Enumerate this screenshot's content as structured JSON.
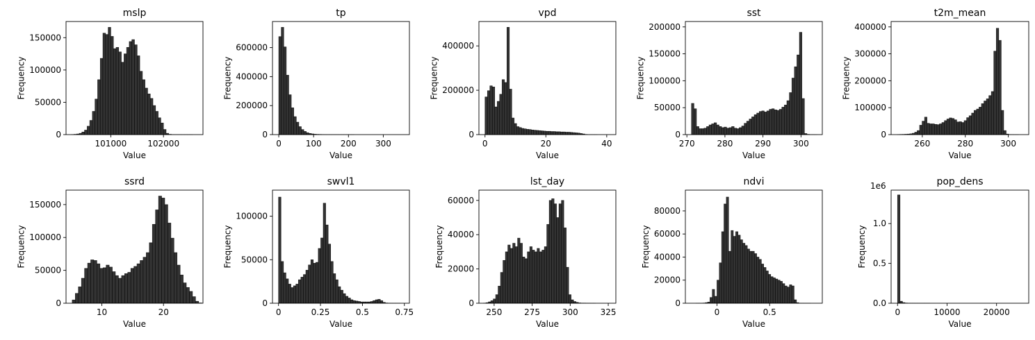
{
  "chart_data": [
    {
      "type": "bar",
      "title": "mslp",
      "xlabel": "Value",
      "ylabel": "Frequency",
      "xlim": [
        100150,
        102750
      ],
      "ylim": [
        0,
        175000
      ],
      "xticks": [
        101000,
        102000
      ],
      "yticks": [
        0,
        50000,
        100000,
        150000
      ],
      "bin_start": 100250,
      "bin_width": 50,
      "values": [
        200,
        500,
        1000,
        2000,
        4000,
        7000,
        13000,
        22000,
        36000,
        55000,
        85000,
        118000,
        157000,
        155000,
        166000,
        152000,
        133000,
        135000,
        128000,
        112000,
        125000,
        135000,
        144000,
        147000,
        139000,
        122000,
        98000,
        85000,
        72000,
        63000,
        56000,
        45000,
        36000,
        26000,
        18000,
        8000,
        2000,
        500,
        200,
        100,
        100,
        50,
        20,
        20,
        20,
        10
      ]
    },
    {
      "type": "bar",
      "title": "tp",
      "xlabel": "Value",
      "ylabel": "Frequency",
      "xlim": [
        -18,
        375
      ],
      "ylim": [
        0,
        780000
      ],
      "xticks": [
        0,
        100,
        200,
        300
      ],
      "yticks": [
        0,
        200000,
        400000,
        600000
      ],
      "bin_start": 0,
      "bin_width": 7.2,
      "values": [
        676000,
        740000,
        605000,
        410000,
        275000,
        185000,
        124000,
        86000,
        55000,
        35000,
        22000,
        13000,
        8000,
        5000,
        3000,
        2000,
        1500,
        1000,
        700,
        500,
        400,
        300,
        200,
        150,
        100,
        80,
        60,
        50,
        40,
        30,
        20,
        20,
        15,
        10,
        10,
        10,
        8,
        6,
        5,
        5,
        4,
        3,
        3,
        2,
        2,
        2,
        1,
        1,
        1,
        1
      ]
    },
    {
      "type": "bar",
      "title": "vpd",
      "xlabel": "Value",
      "ylabel": "Frequency",
      "xlim": [
        -2,
        43
      ],
      "ylim": [
        0,
        510000
      ],
      "xticks": [
        0,
        20,
        40
      ],
      "yticks": [
        0,
        200000,
        400000
      ],
      "bin_start": 0,
      "bin_width": 0.8,
      "values": [
        170000,
        198000,
        220000,
        215000,
        125000,
        150000,
        182000,
        248000,
        235000,
        484000,
        205000,
        75000,
        50000,
        36000,
        32000,
        28000,
        26000,
        24000,
        23000,
        21000,
        20000,
        19000,
        18000,
        17000,
        16000,
        15000,
        15000,
        14000,
        14000,
        13000,
        13000,
        12000,
        12000,
        11000,
        11000,
        10000,
        9000,
        8000,
        7000,
        5000,
        3000,
        1000,
        300,
        100,
        50,
        20,
        10,
        5,
        2,
        1
      ]
    },
    {
      "type": "bar",
      "title": "sst",
      "xlabel": "Value",
      "ylabel": "Frequency",
      "xlim": [
        269.6,
        305.6
      ],
      "ylim": [
        0,
        210000
      ],
      "xticks": [
        270,
        280,
        290,
        300
      ],
      "yticks": [
        0,
        50000,
        100000,
        150000,
        200000
      ],
      "bin_start": 271.2,
      "bin_width": 0.66,
      "values": [
        58000,
        48000,
        15000,
        11000,
        11000,
        12000,
        15000,
        18000,
        20000,
        22000,
        18000,
        15000,
        13000,
        14000,
        12000,
        13000,
        15000,
        12000,
        11000,
        13000,
        16000,
        21000,
        25000,
        29000,
        33000,
        37000,
        40000,
        43000,
        44000,
        42000,
        44000,
        47000,
        48000,
        46000,
        45000,
        47000,
        51000,
        55000,
        63000,
        78000,
        105000,
        126000,
        148000,
        190000,
        67000,
        2000,
        500,
        100,
        50,
        10
      ]
    },
    {
      "type": "bar",
      "title": "t2m_mean",
      "xlabel": "Value",
      "ylabel": "Frequency",
      "xlim": [
        245.5,
        309.5
      ],
      "ylim": [
        0,
        420000
      ],
      "xticks": [
        260,
        280,
        300
      ],
      "yticks": [
        0,
        100000,
        200000,
        300000,
        400000
      ],
      "bin_start": 248.4,
      "bin_width": 1.15,
      "values": [
        500,
        800,
        1000,
        1500,
        2000,
        3000,
        5000,
        9000,
        15000,
        35000,
        50000,
        65000,
        42000,
        40000,
        40000,
        38000,
        37000,
        40000,
        45000,
        52000,
        58000,
        62000,
        60000,
        55000,
        47000,
        48000,
        45000,
        52000,
        63000,
        70000,
        80000,
        90000,
        95000,
        102000,
        115000,
        125000,
        133000,
        145000,
        160000,
        310000,
        395000,
        350000,
        90000,
        15000,
        2000,
        500,
        100,
        50,
        20,
        10
      ]
    },
    {
      "type": "bar",
      "title": "ssrd",
      "xlabel": "Value",
      "ylabel": "Frequency",
      "xlim": [
        4.2,
        26.4
      ],
      "ylim": [
        0,
        172000
      ],
      "xticks": [
        10,
        20
      ],
      "yticks": [
        0,
        50000,
        100000,
        150000
      ],
      "bin_start": 5.2,
      "bin_width": 0.5,
      "values": [
        5000,
        15000,
        25000,
        38000,
        53000,
        61000,
        66000,
        65000,
        60000,
        53000,
        54000,
        58000,
        55000,
        48000,
        42000,
        38000,
        42000,
        45000,
        47000,
        53000,
        56000,
        60000,
        65000,
        70000,
        77000,
        92000,
        120000,
        142000,
        163000,
        160000,
        150000,
        122000,
        99000,
        77000,
        58000,
        43000,
        31000,
        24000,
        18000,
        10000,
        3000,
        500
      ]
    },
    {
      "type": "bar",
      "title": "swvl1",
      "xlabel": "Value",
      "ylabel": "Frequency",
      "xlim": [
        -0.036,
        0.78
      ],
      "ylim": [
        0,
        130000
      ],
      "xticks": [
        0.0,
        0.25,
        0.5,
        0.75
      ],
      "yticks": [
        0,
        50000,
        100000
      ],
      "bin_start": 0,
      "bin_width": 0.0148,
      "values": [
        122000,
        48000,
        35000,
        28000,
        22000,
        18000,
        20000,
        22000,
        27000,
        30000,
        33000,
        38000,
        44000,
        50000,
        46000,
        47000,
        63000,
        75000,
        115000,
        90000,
        68000,
        48000,
        34000,
        27000,
        19000,
        15000,
        11000,
        8000,
        6000,
        4000,
        3000,
        2500,
        2000,
        1500,
        1500,
        1500,
        1500,
        2000,
        3000,
        4000,
        4500,
        3000,
        1000,
        300,
        100,
        50,
        20,
        10,
        5,
        2
      ]
    },
    {
      "type": "bar",
      "title": "lst_day",
      "xlabel": "Value",
      "ylabel": "Frequency",
      "xlim": [
        240,
        330
      ],
      "ylim": [
        0,
        66000
      ],
      "xticks": [
        250,
        275,
        300,
        325
      ],
      "yticks": [
        0,
        20000,
        40000,
        60000
      ],
      "bin_start": 243,
      "bin_width": 1.6,
      "values": [
        100,
        300,
        800,
        1500,
        2500,
        5000,
        10000,
        18000,
        25000,
        30000,
        34000,
        32000,
        35000,
        33000,
        38000,
        35000,
        27000,
        26000,
        30000,
        33000,
        31000,
        30000,
        32000,
        30000,
        31000,
        33000,
        46000,
        60000,
        61000,
        58000,
        50000,
        58000,
        60000,
        44000,
        21000,
        5000,
        2000,
        1000,
        500,
        200,
        100,
        100,
        50,
        20,
        10,
        5,
        2,
        1,
        1,
        1
      ]
    },
    {
      "type": "bar",
      "title": "ndvi",
      "xlabel": "Value",
      "ylabel": "Frequency",
      "xlim": [
        -0.3,
        1.0
      ],
      "ylim": [
        0,
        98000
      ],
      "xticks": [
        0.0,
        0.5
      ],
      "yticks": [
        0,
        20000,
        40000,
        60000,
        80000
      ],
      "bin_start": -0.2,
      "bin_width": 0.0222,
      "values": [
        10,
        50,
        100,
        200,
        500,
        1000,
        5000,
        12000,
        6000,
        20000,
        35000,
        62000,
        86000,
        92000,
        45000,
        63000,
        58000,
        62000,
        59000,
        55000,
        52000,
        50000,
        47000,
        45000,
        45000,
        43000,
        40000,
        38000,
        34000,
        31000,
        28000,
        25000,
        23000,
        22000,
        21000,
        20000,
        19000,
        17000,
        15000,
        14000,
        16000,
        15000,
        3000,
        500,
        100,
        50,
        20,
        10,
        5,
        2
      ]
    },
    {
      "type": "bar",
      "title": "pop_dens",
      "xlabel": "Value",
      "ylabel": "Frequency",
      "xlim": [
        -1300,
        26500
      ],
      "ylim": [
        0,
        1420000
      ],
      "xticks": [
        0,
        10000,
        20000
      ],
      "yticks": [
        0,
        500000,
        1000000
      ],
      "ytick_labels": [
        "0.0",
        "0.5",
        "1.0"
      ],
      "offset_text": "1e6",
      "bin_start": 0,
      "bin_width": 500,
      "values": [
        1360000,
        25000,
        8000,
        3000,
        1500,
        800,
        500,
        300,
        200,
        150,
        100,
        80,
        60,
        40,
        30,
        20,
        15,
        10,
        8,
        6,
        5,
        4,
        3,
        2,
        2,
        2,
        1,
        1,
        1,
        1,
        1,
        1,
        1,
        1,
        1,
        1,
        1,
        1,
        1,
        1,
        1,
        1,
        1,
        1,
        1,
        1,
        1,
        1,
        1,
        1
      ]
    }
  ]
}
